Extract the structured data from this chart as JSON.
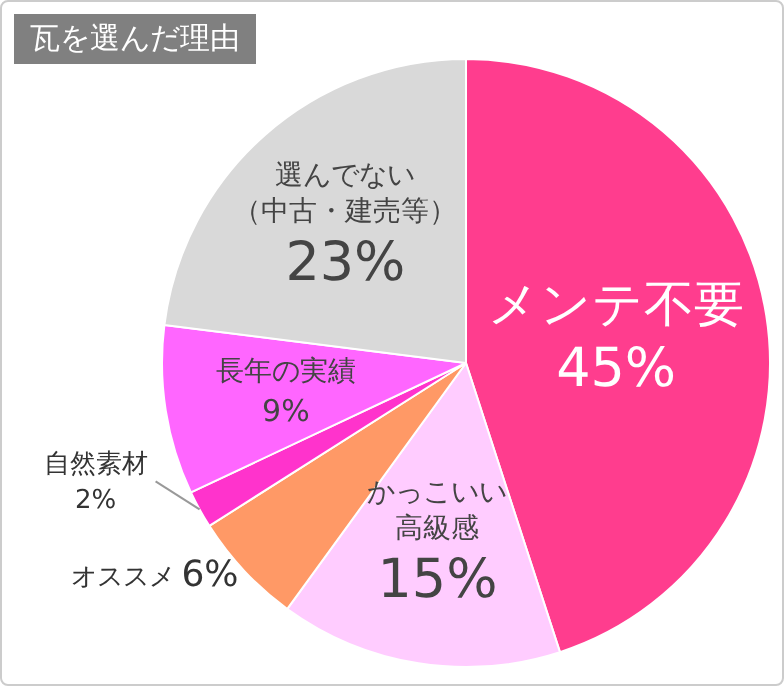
{
  "chart_data": {
    "type": "pie",
    "title": "瓦を選んだ理由",
    "categories": [
      "メンテ不要",
      "かっこいい高級感",
      "オススメ",
      "自然素材",
      "長年の実績",
      "選んでない（中古・建売等）"
    ],
    "values": [
      45,
      15,
      6,
      2,
      9,
      23
    ],
    "value_labels": [
      "45%",
      "15%",
      "6%",
      "2%",
      "9%",
      "23%"
    ],
    "colors": [
      "#ff3d8e",
      "#ffccff",
      "#ff9966",
      "#ff33cc",
      "#ff66ff",
      "#d9d9d9"
    ],
    "legend": false
  }
}
